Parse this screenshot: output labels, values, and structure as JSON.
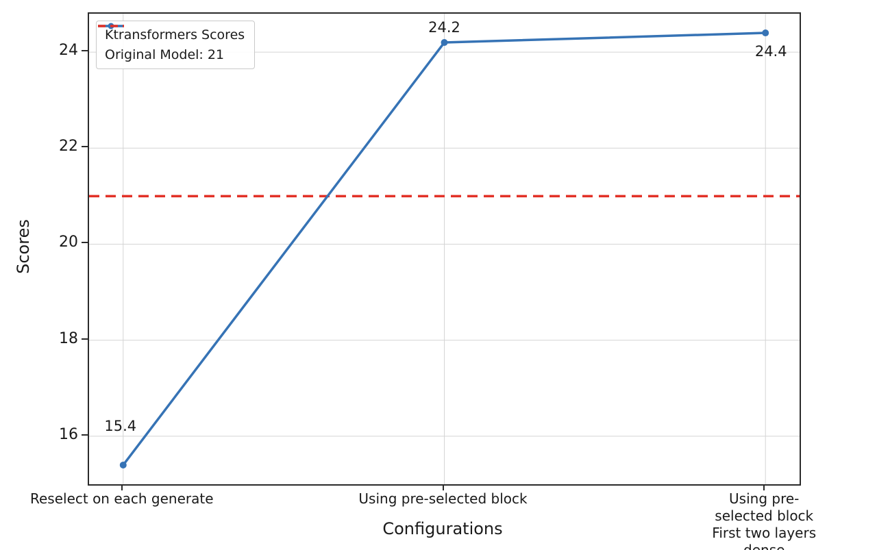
{
  "chart_data": {
    "type": "line",
    "categories": [
      "Reselect on each generate",
      "Using pre-selected block",
      "Using pre-selected block\nFirst two layers dense"
    ],
    "series": [
      {
        "name": "Ktransformers Scores",
        "values": [
          15.4,
          24.2,
          24.4
        ],
        "color": "#3673b5"
      }
    ],
    "reference_line": {
      "label": "Original Model: 21",
      "value": 21,
      "color": "#e23127",
      "style": "dashed"
    },
    "annotations": [
      "15.4",
      "24.2",
      "24.4"
    ],
    "title": "",
    "xlabel": "Configurations",
    "ylabel": "Scores",
    "yticks": [
      16,
      18,
      20,
      22,
      24
    ],
    "ylim": [
      15.0,
      24.8
    ],
    "grid": true,
    "grid_color": "#d4d4d4",
    "legend_position": "top-left"
  }
}
